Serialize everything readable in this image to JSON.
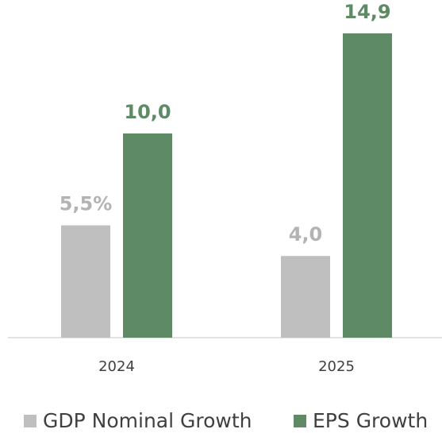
{
  "chart_data": {
    "type": "bar",
    "categories": [
      "2024",
      "2025"
    ],
    "series": [
      {
        "name": "GDP Nominal Growth",
        "color": "#bfbfbf",
        "values": [
          5.5,
          4.0
        ],
        "value_labels": [
          "5,5%",
          "4,0"
        ]
      },
      {
        "name": "EPS Growth",
        "color": "#5e8a66",
        "values": [
          10.0,
          14.9
        ],
        "value_labels": [
          "10,0",
          "14,9"
        ]
      }
    ],
    "legend": "bottom"
  }
}
